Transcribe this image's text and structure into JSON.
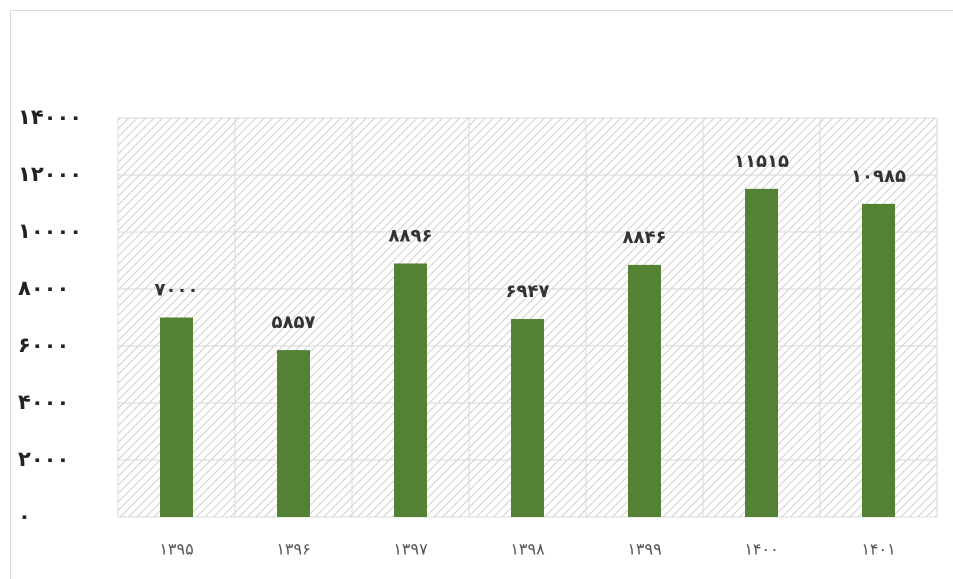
{
  "chart_data": {
    "type": "bar",
    "categories": [
      "۱۳۹۵",
      "۱۳۹۶",
      "۱۳۹۷",
      "۱۳۹۸",
      "۱۳۹۹",
      "۱۴۰۰",
      "۱۴۰۱"
    ],
    "values": [
      7000,
      5857,
      8896,
      6947,
      8846,
      11515,
      10985
    ],
    "value_labels": [
      "۷۰۰۰",
      "۵۸۵۷",
      "۸۸۹۶",
      "۶۹۴۷",
      "۸۸۴۶",
      "۱۱۵۱۵",
      "۱۰۹۸۵"
    ],
    "color": "#548235",
    "ylim": [
      0,
      14000
    ],
    "yticks": [
      {
        "value": 0,
        "label": "۰"
      },
      {
        "value": 2000,
        "label": "۲۰۰۰"
      },
      {
        "value": 4000,
        "label": "۴۰۰۰"
      },
      {
        "value": 6000,
        "label": "۶۰۰۰"
      },
      {
        "value": 8000,
        "label": "۸۰۰۰"
      },
      {
        "value": 10000,
        "label": "۱۰۰۰۰"
      },
      {
        "value": 12000,
        "label": "۱۲۰۰۰"
      },
      {
        "value": 14000,
        "label": "۱۴۰۰۰"
      }
    ],
    "grid": true
  }
}
